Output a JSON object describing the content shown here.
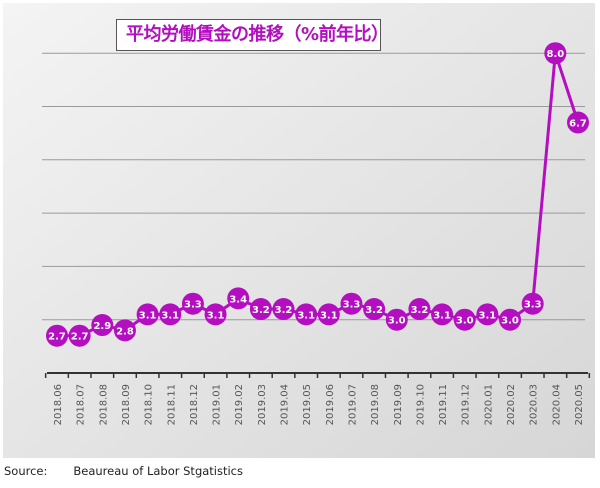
{
  "chart_data": {
    "type": "line",
    "title": "平均労働賃金の推移（%前年比）",
    "xlabel": "",
    "ylabel": "",
    "categories": [
      "2018.06",
      "2018.07",
      "2018.08",
      "2018.09",
      "2018.10",
      "2018.11",
      "2018.12",
      "2019.01",
      "2019.02",
      "2019.03",
      "2019.04",
      "2019.05",
      "2019.06",
      "2019.07",
      "2019.08",
      "2019.09",
      "2019.10",
      "2019.11",
      "2019.12",
      "2020.01",
      "2020.02",
      "2020.03",
      "2020.04",
      "2020.05"
    ],
    "series": [
      {
        "name": "平均労働賃金（%前年比）",
        "values": [
          2.7,
          2.7,
          2.9,
          2.8,
          3.1,
          3.1,
          3.3,
          3.1,
          3.4,
          3.2,
          3.2,
          3.1,
          3.1,
          3.3,
          3.2,
          3.0,
          3.2,
          3.1,
          3.0,
          3.1,
          3.0,
          3.3,
          8.0,
          6.7
        ],
        "labels": [
          "2.7",
          "2.7",
          "2.9",
          "2.8",
          "3.1",
          "3.1",
          "3.3",
          "3.1",
          "3.4",
          "3.2",
          "3.2",
          "3.1",
          "3.1",
          "3.3",
          "3.2",
          "3.0",
          "3.2",
          "3.1",
          "3.0",
          "3.1",
          "3.0",
          "3.3",
          "8.0",
          "6.7"
        ],
        "color": "#b30fc0"
      }
    ],
    "ylim": [
      2,
      8.9
    ],
    "gridlines": [
      3,
      4,
      5,
      6,
      7,
      8
    ],
    "grid": true,
    "legend": "none"
  },
  "source": {
    "label": "Source:",
    "text": "Beaureau of Labor Stgatistics"
  }
}
